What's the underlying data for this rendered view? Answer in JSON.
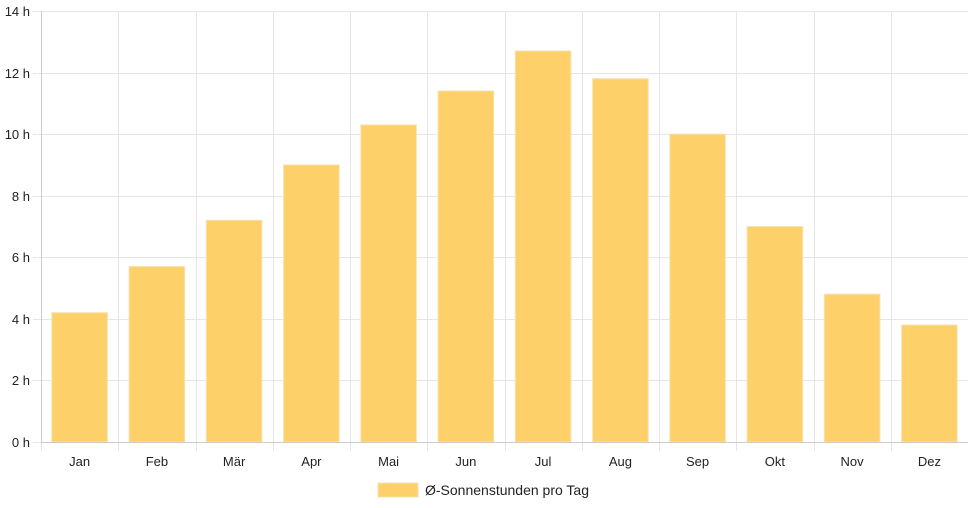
{
  "chart_data": {
    "type": "bar",
    "categories": [
      "Jan",
      "Feb",
      "Mär",
      "Apr",
      "Mai",
      "Jun",
      "Jul",
      "Aug",
      "Sep",
      "Okt",
      "Nov",
      "Dez"
    ],
    "series": [
      {
        "name": "Ø-Sonnenstunden pro Tag",
        "values": [
          4.2,
          5.7,
          7.2,
          9.0,
          10.3,
          11.4,
          12.7,
          11.8,
          10.0,
          7.0,
          4.8,
          3.8
        ]
      }
    ],
    "y_ticks": [
      "0 h",
      "2 h",
      "4 h",
      "6 h",
      "8 h",
      "10 h",
      "12 h",
      "14 h"
    ],
    "ylim": [
      0,
      14
    ],
    "grid": true,
    "legend_position": "bottom",
    "bar_color": "#fdd069",
    "bar_border_color": "#f5e3b0",
    "grid_color": "#e6e6e6",
    "axis_color": "#cccccc"
  }
}
